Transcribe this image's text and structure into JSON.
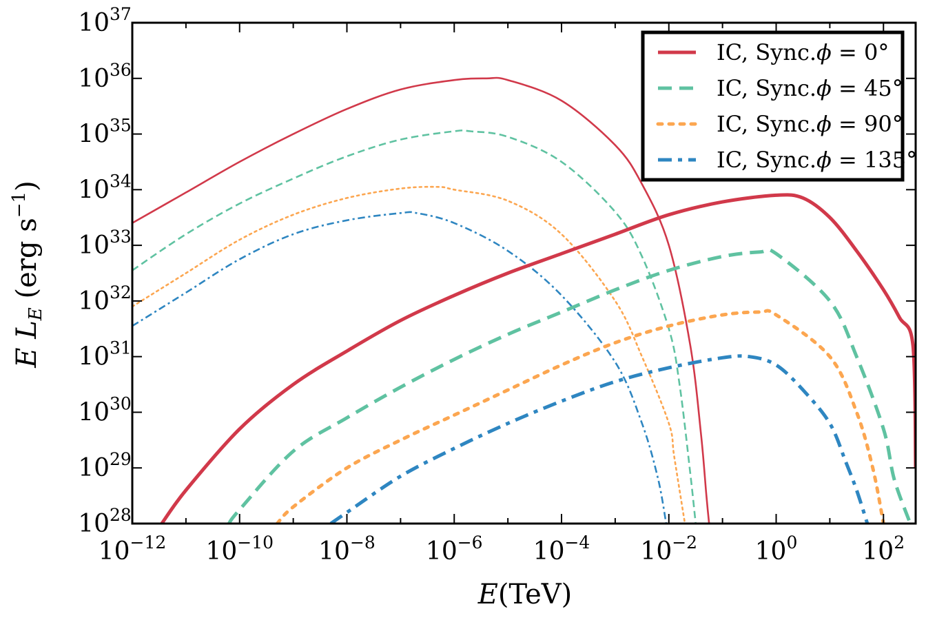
{
  "chart_data": {
    "type": "line",
    "title": "",
    "xlabel_italic": "E",
    "xlabel_rest": "(TeV)",
    "ylabel_e": "E",
    "ylabel_l": "L",
    "ylabel_sub": "E",
    "ylabel_units": "(erg s",
    "ylabel_exp": "−1",
    "ylabel_close": ")",
    "x_scale": "log",
    "y_scale": "log",
    "xlim_log10": [
      -12,
      2.6
    ],
    "ylim_log10": [
      28,
      37
    ],
    "grid": false,
    "legend_position": "top-right",
    "x_ticks": [
      {
        "base": "10",
        "exp": "−12",
        "log": -12
      },
      {
        "base": "10",
        "exp": "−10",
        "log": -10
      },
      {
        "base": "10",
        "exp": "−8",
        "log": -8
      },
      {
        "base": "10",
        "exp": "−6",
        "log": -6
      },
      {
        "base": "10",
        "exp": "−4",
        "log": -4
      },
      {
        "base": "10",
        "exp": "−2",
        "log": -2
      },
      {
        "base": "10",
        "exp": "0",
        "log": 0
      },
      {
        "base": "10",
        "exp": "2",
        "log": 2
      }
    ],
    "y_ticks": [
      {
        "base": "10",
        "exp": "28",
        "log": 28
      },
      {
        "base": "10",
        "exp": "29",
        "log": 29
      },
      {
        "base": "10",
        "exp": "30",
        "log": 30
      },
      {
        "base": "10",
        "exp": "31",
        "log": 31
      },
      {
        "base": "10",
        "exp": "32",
        "log": 32
      },
      {
        "base": "10",
        "exp": "33",
        "log": 33
      },
      {
        "base": "10",
        "exp": "34",
        "log": 34
      },
      {
        "base": "10",
        "exp": "35",
        "log": 35
      },
      {
        "base": "10",
        "exp": "36",
        "log": 36
      },
      {
        "base": "10",
        "exp": "37",
        "log": 37
      }
    ],
    "legend": [
      {
        "text_main": "IC, Sync.",
        "text_phi": "ϕ",
        "text_tail": " = 0°",
        "color": "#d1394a",
        "dash": "solid"
      },
      {
        "text_main": "IC, Sync.",
        "text_phi": "ϕ",
        "text_tail": " = 45°",
        "color": "#5fc2a1",
        "dash": "dashed"
      },
      {
        "text_main": "IC, Sync.",
        "text_phi": "ϕ",
        "text_tail": " = 90°",
        "color": "#fca650",
        "dash": "dotted"
      },
      {
        "text_main": "IC, Sync.",
        "text_phi": "ϕ",
        "text_tail": " = 135°",
        "color": "#2e86c1",
        "dash": "dashdot"
      }
    ],
    "series": [
      {
        "name": "Sync φ=0°",
        "component": "Sync",
        "color": "#d1394a",
        "dash": "solid",
        "log_x": [
          -12,
          -11,
          -10,
          -9,
          -8,
          -7,
          -6,
          -5.4,
          -5,
          -4,
          -3,
          -2.5,
          -2,
          -1.6,
          -1.4,
          -1.3,
          -1.25
        ],
        "log_y": [
          33.4,
          33.95,
          34.5,
          35.0,
          35.45,
          35.8,
          35.97,
          36.0,
          35.97,
          35.6,
          34.8,
          34.1,
          33.0,
          31.2,
          29.6,
          28.5,
          28.0
        ]
      },
      {
        "name": "Sync φ=45°",
        "component": "Sync",
        "color": "#5fc2a1",
        "dash": "dashed",
        "log_x": [
          -12,
          -11,
          -10,
          -9,
          -8,
          -7,
          -6,
          -5.7,
          -5,
          -4,
          -3,
          -2.5,
          -2,
          -1.8,
          -1.6,
          -1.5
        ],
        "log_y": [
          32.55,
          33.2,
          33.75,
          34.2,
          34.6,
          34.9,
          35.05,
          35.05,
          34.95,
          34.5,
          33.6,
          32.8,
          31.5,
          30.5,
          28.9,
          28.0
        ]
      },
      {
        "name": "Sync φ=90°",
        "component": "Sync",
        "color": "#fca650",
        "dash": "dotted",
        "log_x": [
          -12,
          -11,
          -10,
          -9,
          -8,
          -7,
          -6.3,
          -6,
          -5,
          -4,
          -3,
          -2.5,
          -2,
          -1.9,
          -1.7
        ],
        "log_y": [
          31.9,
          32.5,
          33.1,
          33.55,
          33.85,
          34.02,
          34.05,
          34.0,
          33.8,
          33.2,
          32.0,
          31.0,
          29.8,
          29.2,
          28.0
        ]
      },
      {
        "name": "Sync φ=135°",
        "component": "Sync",
        "color": "#2e86c1",
        "dash": "dashdot",
        "log_x": [
          -12,
          -11,
          -10,
          -9,
          -8,
          -7,
          -6.7,
          -6,
          -5,
          -4,
          -3,
          -2.5,
          -2.2,
          -2.05
        ],
        "log_y": [
          31.55,
          32.15,
          32.75,
          33.2,
          33.45,
          33.58,
          33.58,
          33.4,
          32.9,
          32.1,
          30.9,
          29.8,
          28.8,
          28.0
        ]
      },
      {
        "name": "IC φ=0°",
        "component": "IC",
        "color": "#d1394a",
        "dash": "solid",
        "log_x": [
          -11.45,
          -11,
          -10,
          -9,
          -8,
          -7,
          -6,
          -5,
          -4,
          -3,
          -2,
          -1,
          0,
          0.5,
          1,
          1.5,
          2,
          2.3,
          2.55,
          2.6
        ],
        "log_y": [
          28.0,
          28.6,
          29.7,
          30.5,
          31.1,
          31.65,
          32.1,
          32.5,
          32.85,
          33.2,
          33.55,
          33.78,
          33.9,
          33.85,
          33.5,
          32.9,
          32.2,
          31.7,
          31.2,
          29.0
        ]
      },
      {
        "name": "IC φ=45°",
        "component": "IC",
        "color": "#5fc2a1",
        "dash": "dashed",
        "log_x": [
          -10.2,
          -10,
          -9,
          -8,
          -7,
          -6,
          -5,
          -4,
          -3,
          -2,
          -1,
          -0.3,
          0,
          1,
          1.5,
          2,
          2.2,
          2.5
        ],
        "log_y": [
          28.0,
          28.25,
          29.3,
          29.9,
          30.45,
          30.95,
          31.4,
          31.8,
          32.2,
          32.55,
          32.8,
          32.88,
          32.85,
          32.0,
          31.0,
          29.7,
          28.8,
          28.0
        ]
      },
      {
        "name": "IC φ=90°",
        "component": "IC",
        "color": "#fca650",
        "dash": "dotted",
        "log_x": [
          -9.3,
          -9,
          -8,
          -7,
          -6,
          -5,
          -4,
          -3,
          -2,
          -1,
          -0.3,
          0,
          1,
          1.5,
          1.8,
          2.0
        ],
        "log_y": [
          28.0,
          28.3,
          29.0,
          29.5,
          29.95,
          30.4,
          30.85,
          31.25,
          31.55,
          31.75,
          31.8,
          31.75,
          31.0,
          30.0,
          29.0,
          28.0
        ]
      },
      {
        "name": "IC φ=135°",
        "component": "IC",
        "color": "#2e86c1",
        "dash": "dashdot",
        "log_x": [
          -8.3,
          -8,
          -7,
          -6,
          -5,
          -4,
          -3,
          -2,
          -1,
          -0.5,
          0,
          0.5,
          1,
          1.3,
          1.5,
          1.7
        ],
        "log_y": [
          28.0,
          28.2,
          28.85,
          29.35,
          29.8,
          30.2,
          30.55,
          30.8,
          30.98,
          31.0,
          30.85,
          30.4,
          29.8,
          29.1,
          28.6,
          28.0
        ]
      }
    ]
  }
}
